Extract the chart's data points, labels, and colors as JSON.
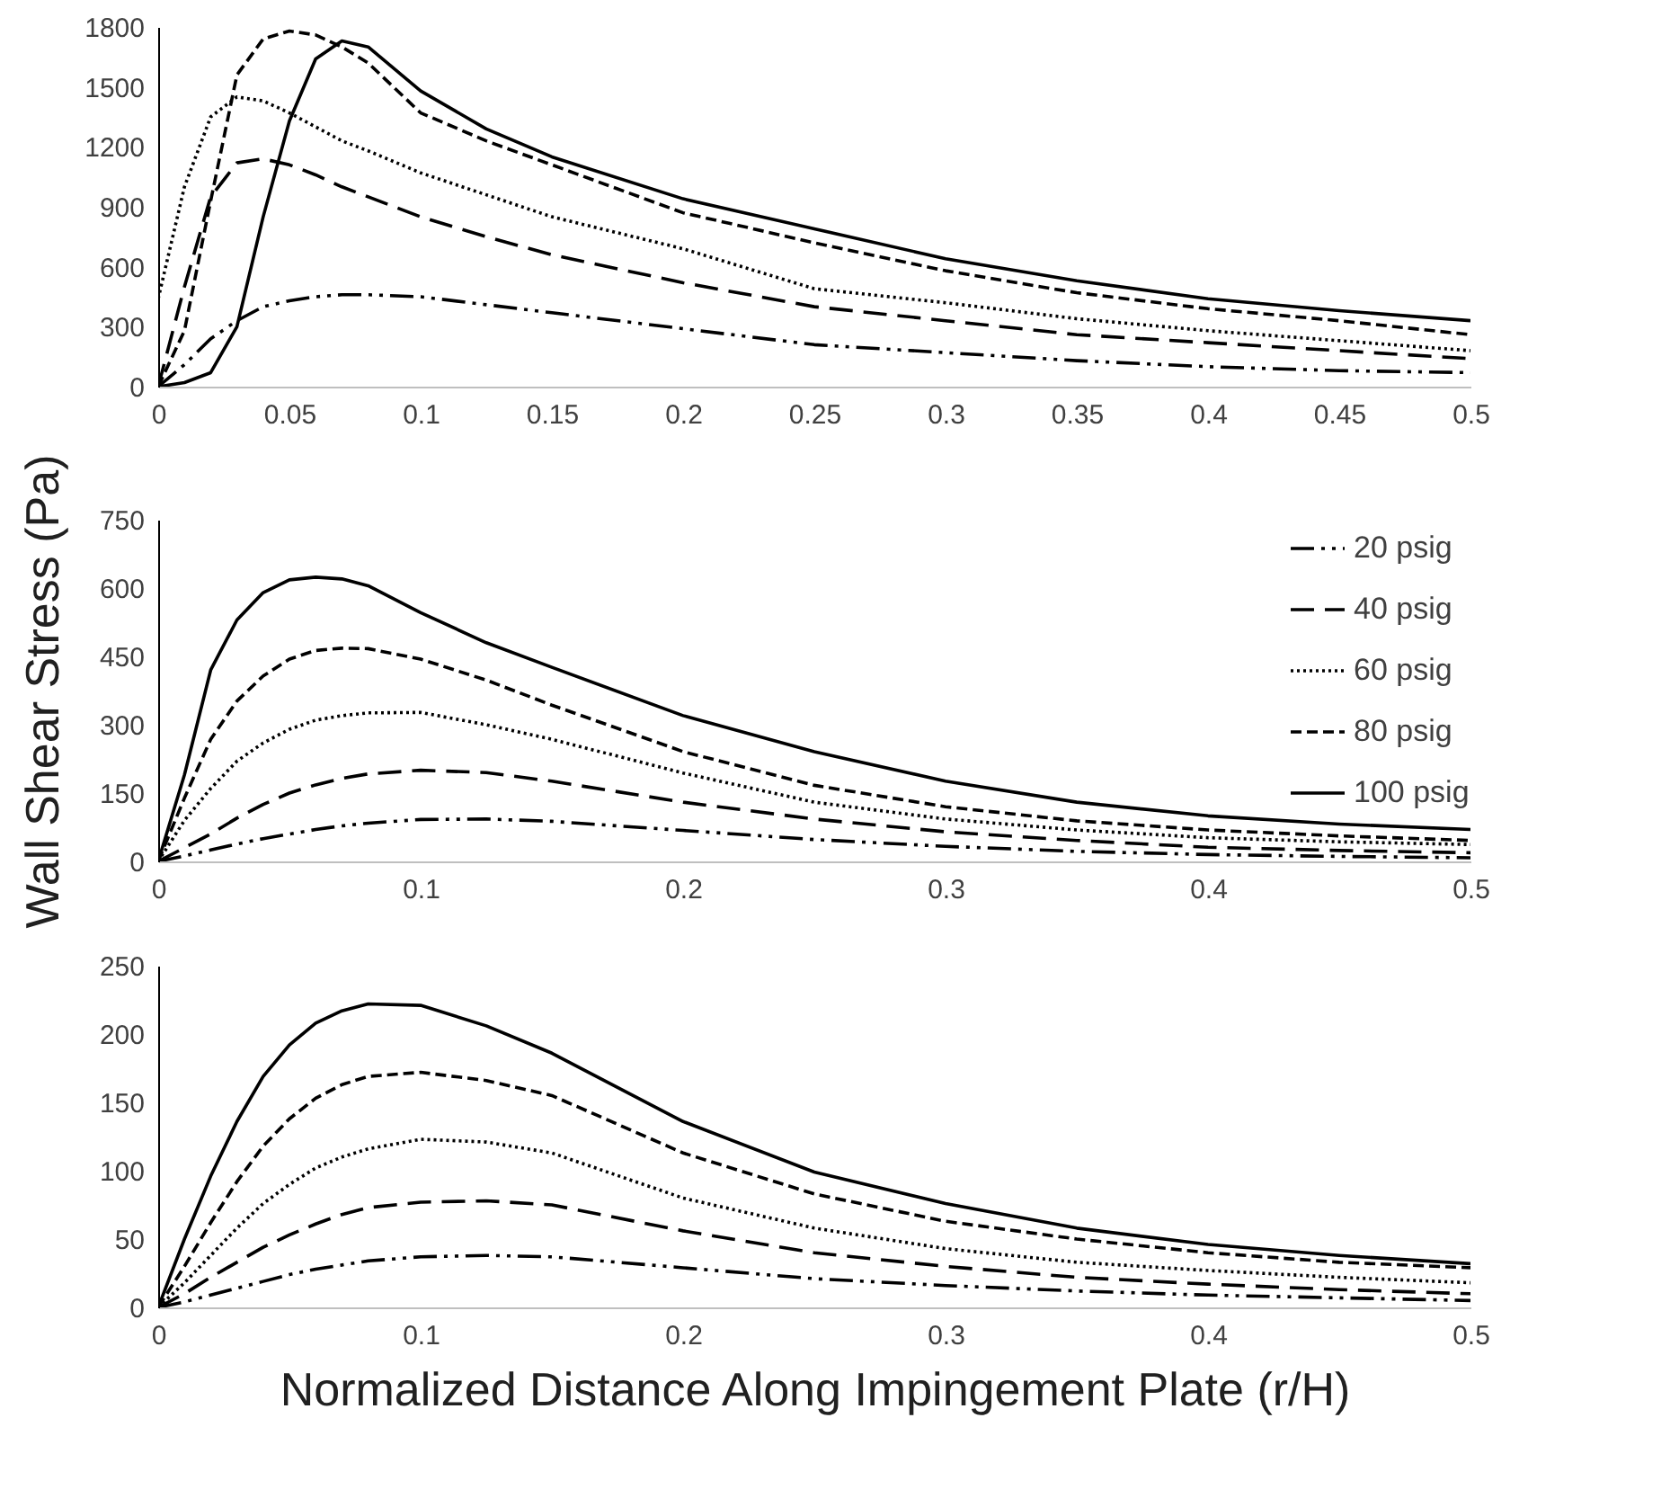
{
  "chart_data": [
    {
      "type": "line",
      "x": [
        0,
        0.01,
        0.02,
        0.03,
        0.04,
        0.05,
        0.06,
        0.07,
        0.08,
        0.1,
        0.125,
        0.15,
        0.2,
        0.25,
        0.3,
        0.35,
        0.4,
        0.45,
        0.5
      ],
      "series": [
        {
          "color": "#000000",
          "line_style": "dashdot",
          "values": [
            0,
            110,
            240,
            330,
            400,
            430,
            450,
            460,
            460,
            450,
            410,
            370,
            290,
            210,
            170,
            130,
            100,
            80,
            70
          ]
        },
        {
          "color": "#000000",
          "line_style": "longdash",
          "values": [
            0,
            500,
            950,
            1120,
            1140,
            1110,
            1060,
            1000,
            950,
            850,
            750,
            660,
            520,
            400,
            330,
            260,
            220,
            180,
            140
          ]
        },
        {
          "color": "#000000",
          "line_style": "dotted",
          "values": [
            440,
            1000,
            1350,
            1450,
            1430,
            1370,
            1300,
            1230,
            1180,
            1070,
            960,
            850,
            690,
            490,
            420,
            340,
            280,
            230,
            180
          ]
        },
        {
          "color": "#000000",
          "line_style": "dashed",
          "values": [
            0,
            280,
            930,
            1560,
            1740,
            1780,
            1760,
            1700,
            1620,
            1370,
            1230,
            1110,
            870,
            720,
            580,
            470,
            390,
            330,
            260
          ]
        },
        {
          "color": "#000000",
          "line_style": "solid",
          "values": [
            0,
            20,
            70,
            300,
            850,
            1330,
            1640,
            1730,
            1700,
            1480,
            1290,
            1150,
            940,
            790,
            640,
            530,
            440,
            380,
            330
          ]
        }
      ],
      "xlim": [
        0,
        0.5
      ],
      "xticks": [
        0,
        0.05,
        0.1,
        0.15,
        0.2,
        0.25,
        0.3,
        0.35,
        0.4,
        0.45,
        0.5
      ],
      "ylim": [
        0,
        1800
      ],
      "yticks": [
        0,
        300,
        600,
        900,
        1200,
        1500,
        1800
      ],
      "grid": false,
      "legend": false
    },
    {
      "type": "line",
      "ylabel": "Wall Shear Stress (Pa)",
      "x": [
        0,
        0.01,
        0.02,
        0.03,
        0.04,
        0.05,
        0.06,
        0.07,
        0.08,
        0.1,
        0.125,
        0.15,
        0.2,
        0.25,
        0.3,
        0.35,
        0.4,
        0.45,
        0.5
      ],
      "series": [
        {
          "name": "20 psig",
          "color": "#000000",
          "line_style": "dashdot",
          "values": [
            0,
            12,
            25,
            38,
            50,
            60,
            70,
            78,
            84,
            92,
            93,
            88,
            68,
            48,
            33,
            22,
            15,
            11,
            8
          ]
        },
        {
          "name": "40 psig",
          "color": "#000000",
          "line_style": "longdash",
          "values": [
            0,
            30,
            60,
            95,
            125,
            150,
            168,
            182,
            192,
            200,
            195,
            176,
            130,
            93,
            65,
            46,
            31,
            24,
            19
          ]
        },
        {
          "name": "60 psig",
          "color": "#000000",
          "line_style": "dotted",
          "values": [
            0,
            90,
            160,
            220,
            260,
            290,
            310,
            320,
            326,
            327,
            300,
            268,
            194,
            130,
            93,
            69,
            52,
            43,
            37
          ]
        },
        {
          "name": "80 psig",
          "color": "#000000",
          "line_style": "dashed",
          "values": [
            0,
            139,
            268,
            352,
            407,
            444,
            463,
            468,
            467,
            444,
            398,
            343,
            241,
            167,
            120,
            89,
            69,
            56,
            46
          ]
        },
        {
          "name": "100 psig",
          "color": "#000000",
          "line_style": "solid",
          "values": [
            0,
            190,
            420,
            530,
            590,
            618,
            624,
            620,
            605,
            546,
            480,
            426,
            320,
            241,
            176,
            130,
            100,
            82,
            70
          ]
        }
      ],
      "xlim": [
        0,
        0.5
      ],
      "xticks": [
        0,
        0.1,
        0.2,
        0.3,
        0.4,
        0.5
      ],
      "ylim": [
        0,
        750
      ],
      "yticks": [
        0,
        150,
        300,
        450,
        600,
        750
      ],
      "grid": false,
      "legend": "top right"
    },
    {
      "type": "line",
      "xlabel": "Normalized Distance Along Impingement Plate (r/H)",
      "x": [
        0,
        0.01,
        0.02,
        0.03,
        0.04,
        0.05,
        0.06,
        0.07,
        0.08,
        0.1,
        0.125,
        0.15,
        0.2,
        0.25,
        0.3,
        0.35,
        0.4,
        0.45,
        0.5
      ],
      "series": [
        {
          "color": "#000000",
          "line_style": "dashdot",
          "values": [
            0,
            4,
            9,
            14,
            19,
            24,
            28,
            31,
            34,
            37,
            38,
            37,
            29,
            21,
            16,
            12,
            9,
            7,
            5
          ]
        },
        {
          "color": "#000000",
          "line_style": "longdash",
          "values": [
            0,
            10,
            22,
            33,
            44,
            53,
            61,
            68,
            73,
            77,
            78,
            75,
            56,
            40,
            30,
            22,
            17,
            13,
            10
          ]
        },
        {
          "color": "#000000",
          "line_style": "dotted",
          "values": [
            0,
            18,
            38,
            58,
            76,
            90,
            102,
            110,
            116,
            123,
            121,
            113,
            80,
            58,
            43,
            33,
            27,
            22,
            18
          ]
        },
        {
          "color": "#000000",
          "line_style": "dashed",
          "values": [
            0,
            30,
            62,
            92,
            118,
            138,
            153,
            163,
            169,
            172,
            166,
            155,
            113,
            83,
            63,
            50,
            40,
            33,
            29
          ]
        },
        {
          "color": "#000000",
          "line_style": "solid",
          "values": [
            0,
            50,
            96,
            136,
            169,
            192,
            208,
            217,
            222,
            221,
            206,
            186,
            136,
            99,
            76,
            58,
            46,
            38,
            32
          ]
        }
      ],
      "xlim": [
        0,
        0.5
      ],
      "xticks": [
        0,
        0.1,
        0.2,
        0.3,
        0.4,
        0.5
      ],
      "ylim": [
        0,
        250
      ],
      "yticks": [
        0,
        50,
        100,
        150,
        200,
        250
      ],
      "grid": false,
      "legend": false
    }
  ]
}
